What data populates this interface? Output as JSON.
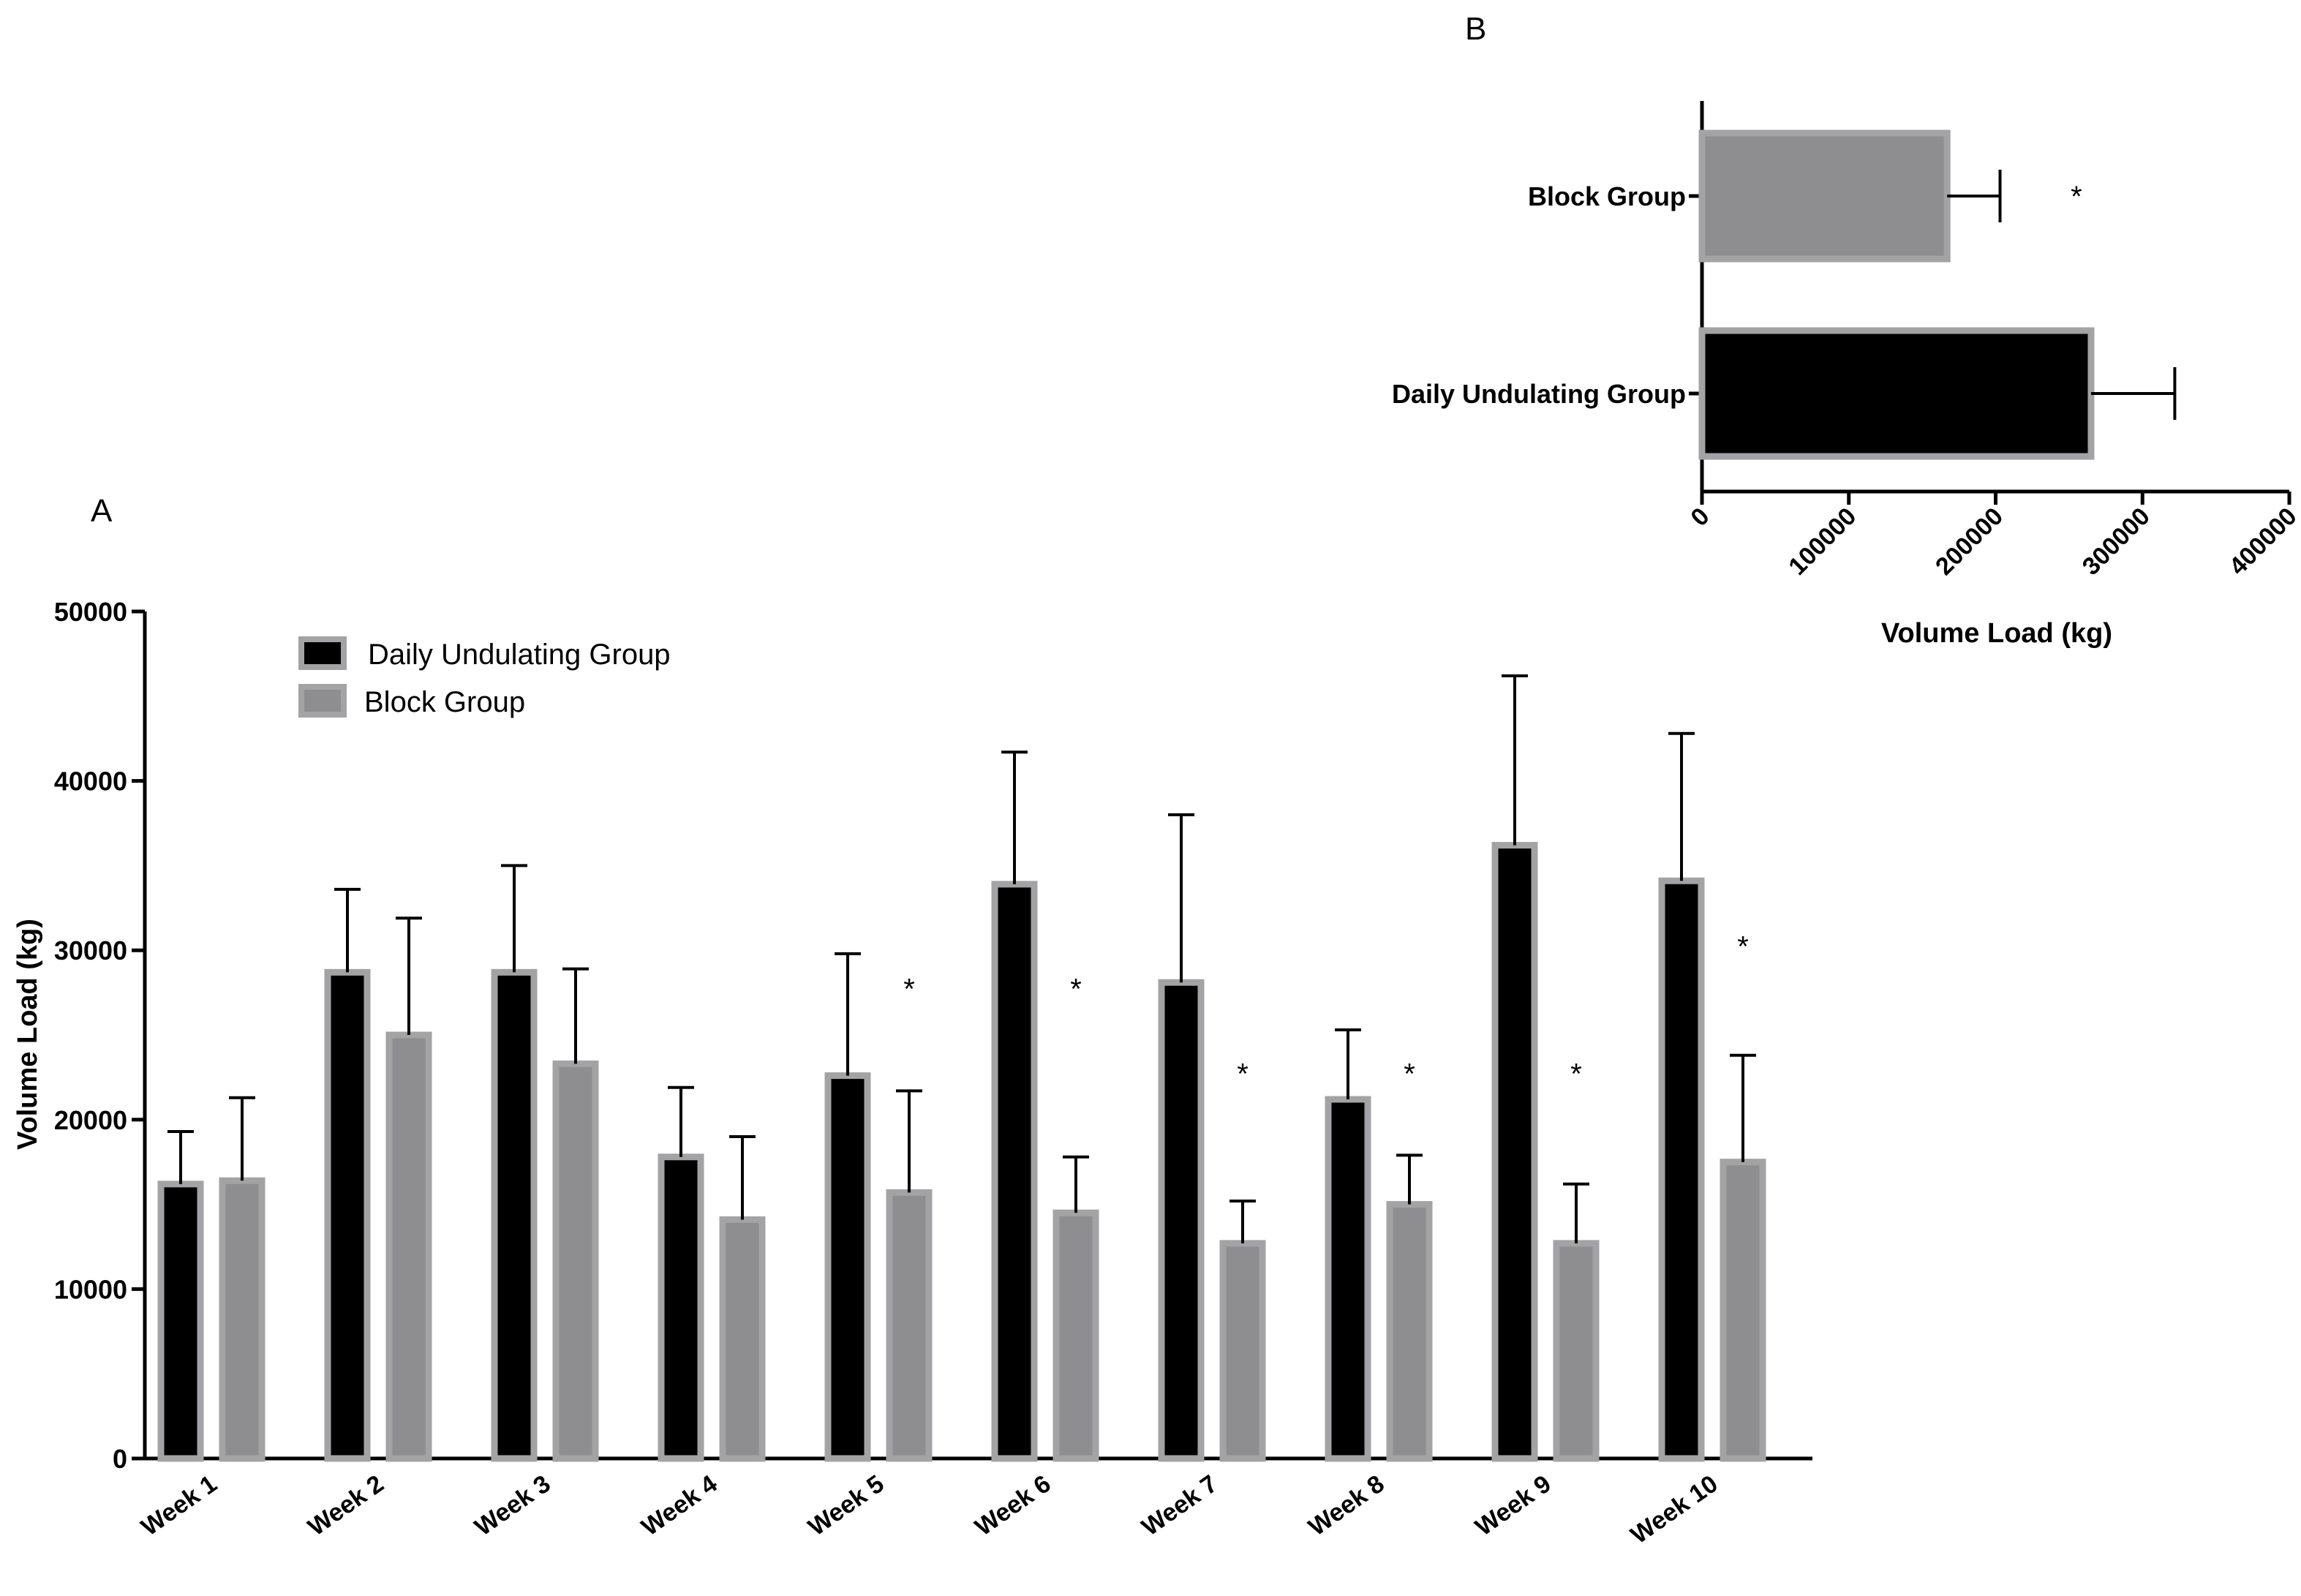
{
  "panel_a_label": "A",
  "panel_b_label": "B",
  "colors": {
    "daily": "#000000",
    "block": "#8e8d90",
    "bar_edge": "#a3a2a5",
    "axis": "#000000"
  },
  "chart_data": [
    {
      "id": "A",
      "type": "bar",
      "title": "",
      "xlabel": "",
      "ylabel": "Volume Load (kg)",
      "ylim": [
        0,
        50000
      ],
      "yticks": [
        0,
        10000,
        20000,
        30000,
        40000,
        50000
      ],
      "categories": [
        "Week 1",
        "Week 2",
        "Week 3",
        "Week 4",
        "Week 5",
        "Week 6",
        "Week 7",
        "Week 8",
        "Week 9",
        "Week 10"
      ],
      "legend_position": "top-left",
      "series": [
        {
          "name": "Daily Undulating Group",
          "values": [
            16200,
            28700,
            28700,
            17800,
            22600,
            33900,
            28100,
            21200,
            36200,
            34100
          ],
          "error_plus": [
            3100,
            4900,
            6300,
            4100,
            7200,
            7800,
            9900,
            4100,
            10000,
            8700
          ]
        },
        {
          "name": "Block Group",
          "values": [
            16400,
            25000,
            23300,
            14100,
            15700,
            14500,
            12700,
            15000,
            12700,
            17500
          ],
          "error_plus": [
            4900,
            6900,
            5600,
            4900,
            6000,
            3300,
            2500,
            2900,
            3500,
            6300
          ]
        }
      ],
      "significance": [
        {
          "category": "Week 5",
          "label": "*",
          "y": 28000
        },
        {
          "category": "Week 6",
          "label": "*",
          "y": 28000
        },
        {
          "category": "Week 7",
          "label": "*",
          "y": 23000
        },
        {
          "category": "Week 8",
          "label": "*",
          "y": 23000
        },
        {
          "category": "Week 9",
          "label": "*",
          "y": 23000
        },
        {
          "category": "Week 10",
          "label": "*",
          "y": 30500
        }
      ]
    },
    {
      "id": "B",
      "type": "bar",
      "orientation": "horizontal",
      "title": "",
      "xlabel": "Volume Load (kg)",
      "ylabel": "",
      "xlim": [
        0,
        400000
      ],
      "xticks": [
        0,
        100000,
        200000,
        300000,
        400000
      ],
      "categories": [
        "Block Group",
        "Daily Undulating Group"
      ],
      "values": [
        167000,
        265000
      ],
      "error_plus": [
        36000,
        57000
      ],
      "significance": [
        {
          "category": "Block Group",
          "label": "*",
          "x": 255000
        }
      ]
    }
  ]
}
